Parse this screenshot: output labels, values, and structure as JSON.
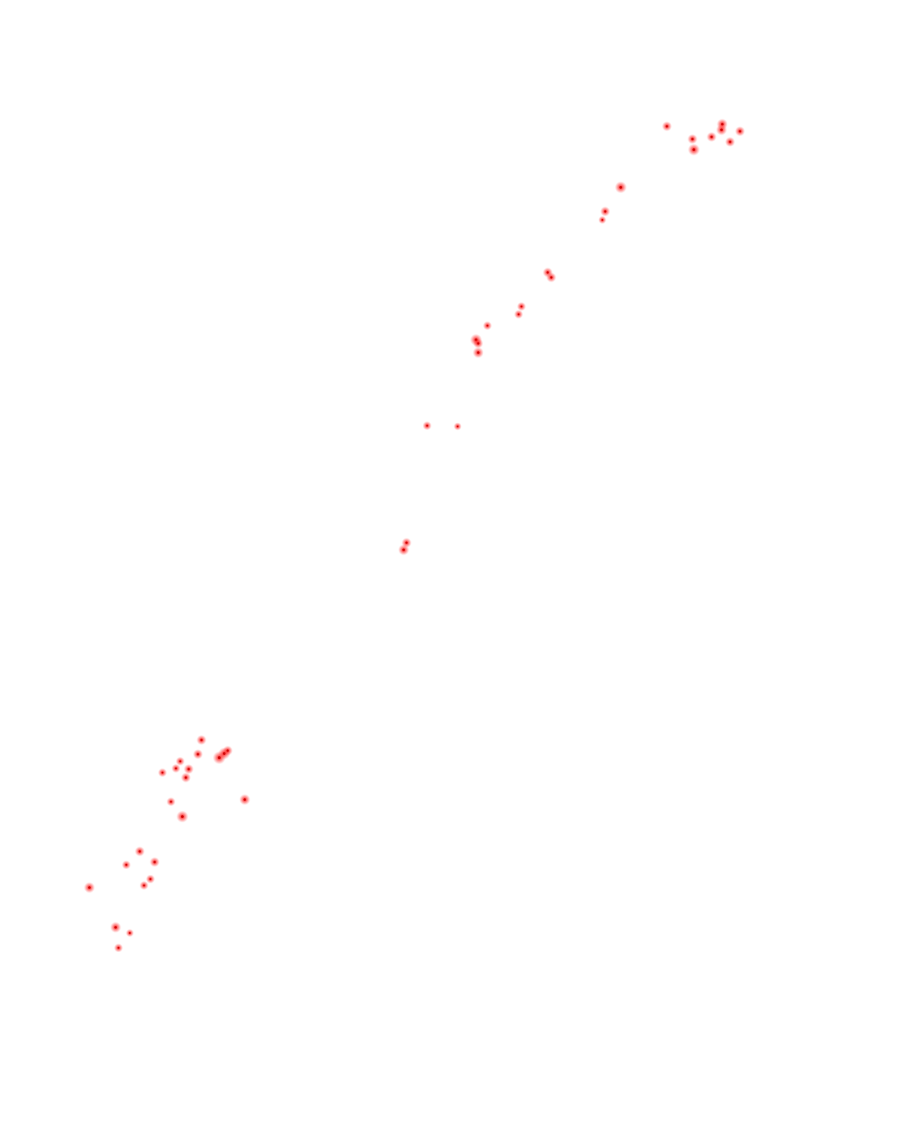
{
  "background_color": "#ffffff",
  "marker_color": "#ff0000",
  "marker_core_color": "#cc0000"
}
